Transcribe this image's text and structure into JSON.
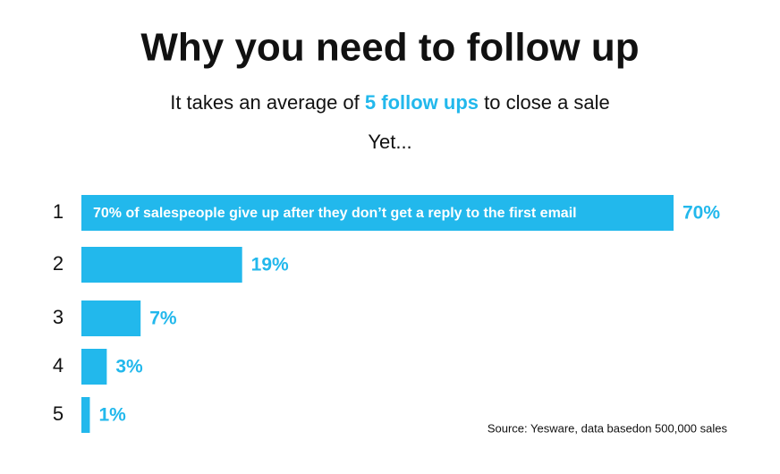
{
  "chart_data": {
    "type": "bar",
    "orientation": "horizontal",
    "title": "Why you need to follow up",
    "subtitle": {
      "before": "It takes an average of",
      "highlight": "5 follow ups",
      "after": "to close a sale"
    },
    "subtitle2": "Yet...",
    "categories": [
      "1",
      "2",
      "3",
      "4",
      "5"
    ],
    "values": [
      70,
      19,
      7,
      3,
      1
    ],
    "value_labels": [
      "70%",
      "19%",
      "7%",
      "3%",
      "1%"
    ],
    "bar_annotation": "70% of salespeople give up after they don’t get a reply to the first email",
    "source": "Source: Yesware, data basedon 500,000 sales",
    "color": "#22b8ec"
  }
}
